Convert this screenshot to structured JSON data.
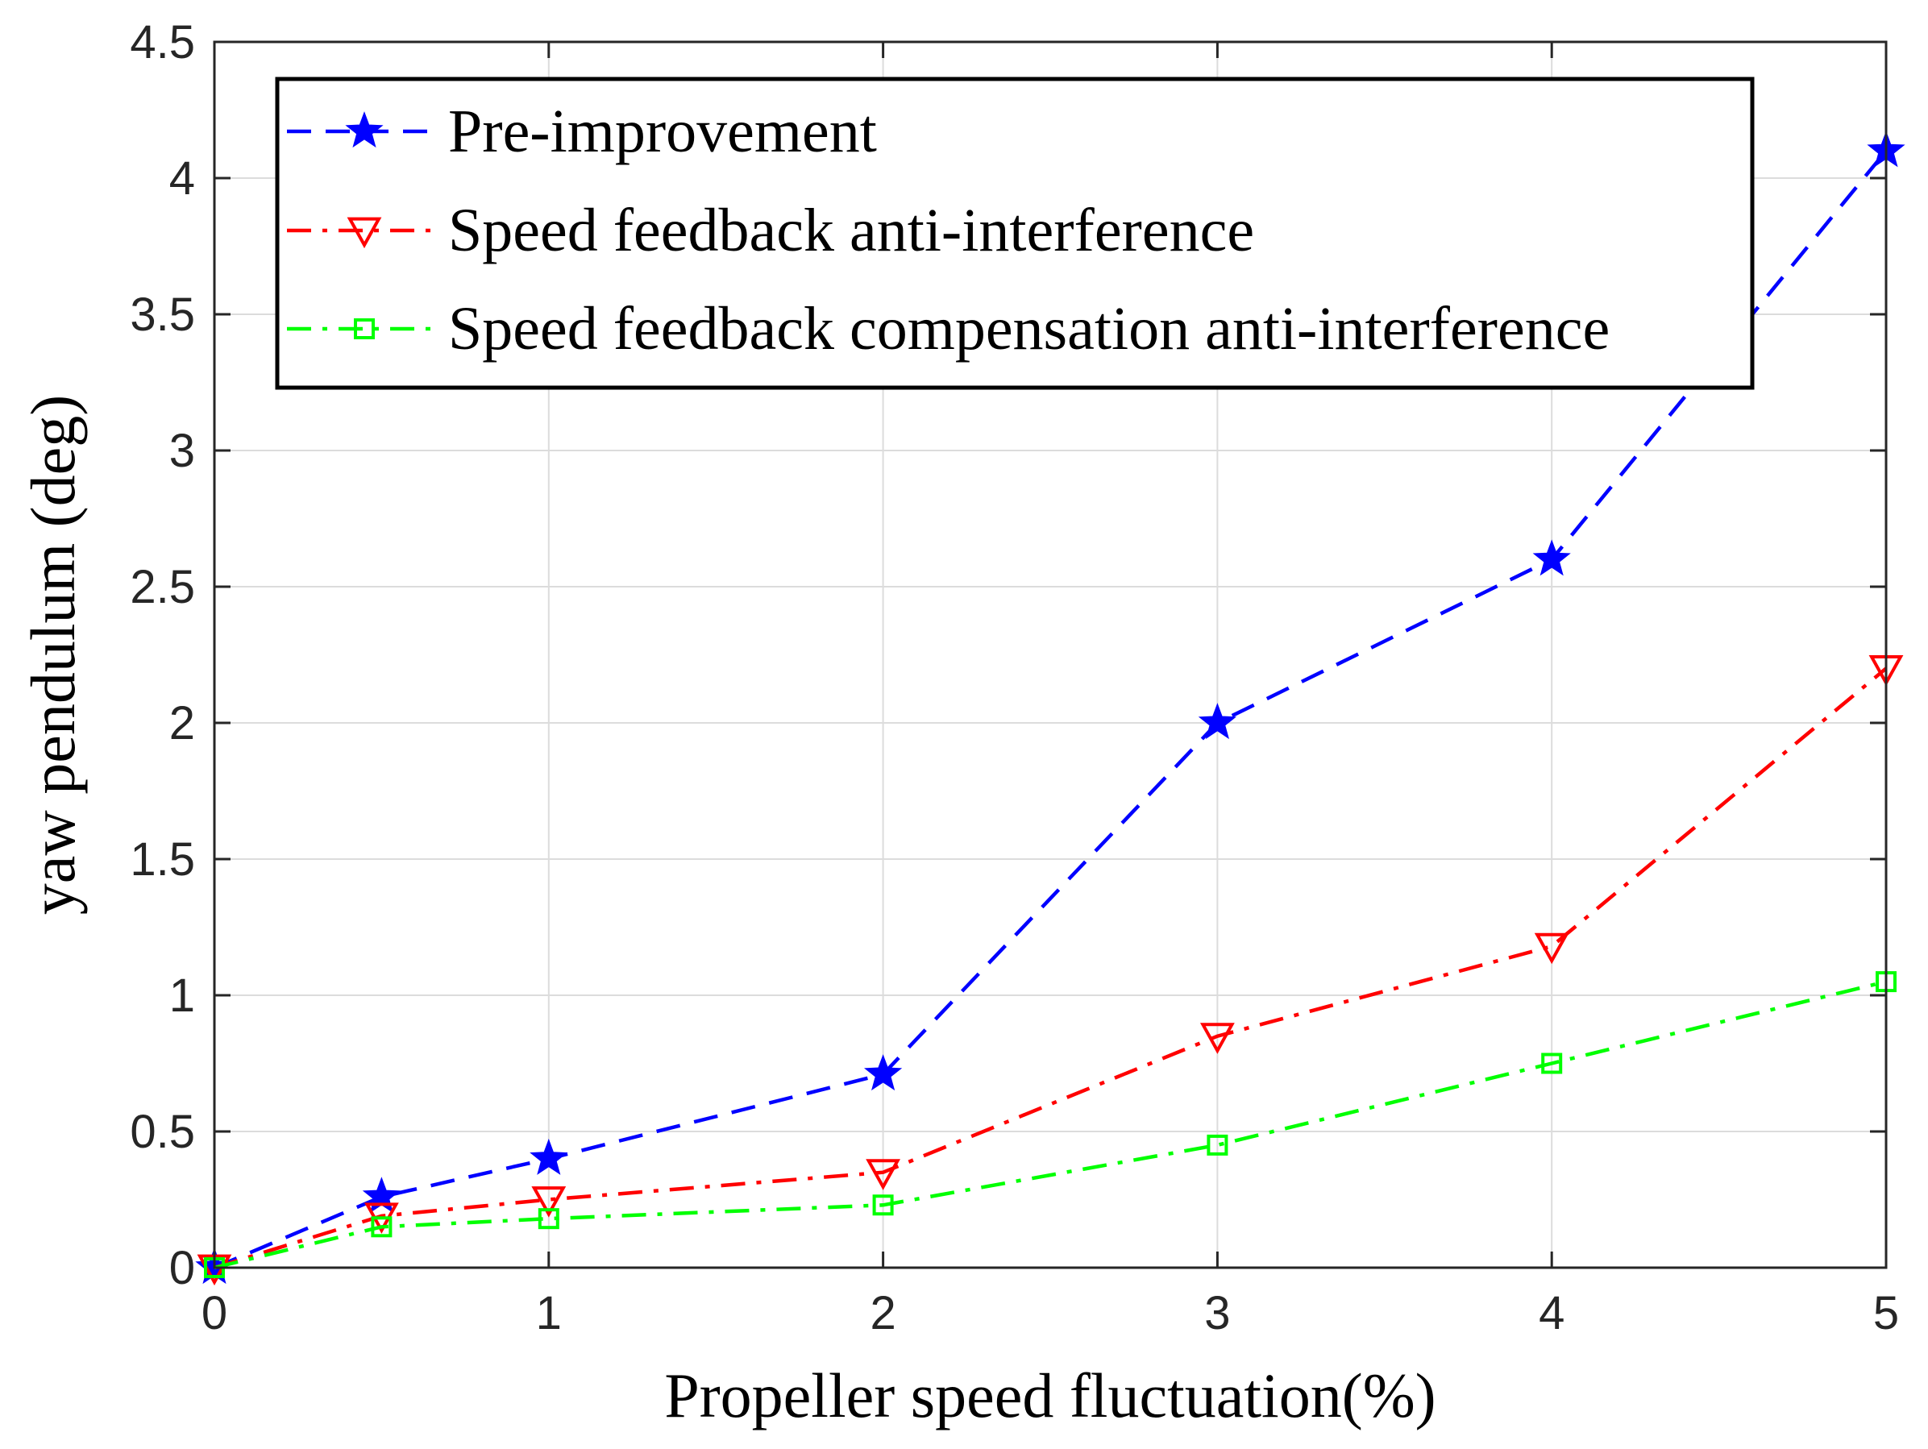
{
  "chart_data": {
    "type": "line",
    "title": "",
    "xlabel": "Propeller speed fluctuation(%)",
    "ylabel": "yaw pendulum (deg)",
    "xlim": [
      0,
      5
    ],
    "ylim": [
      0,
      4.5
    ],
    "xticks": [
      0,
      1,
      2,
      3,
      4,
      5
    ],
    "xtick_labels": [
      "0",
      "1",
      "2",
      "3",
      "4",
      "5"
    ],
    "yticks": [
      0,
      0.5,
      1,
      1.5,
      2,
      2.5,
      3,
      3.5,
      4,
      4.5
    ],
    "ytick_labels": [
      "0",
      "0.5",
      "1",
      "1.5",
      "2",
      "2.5",
      "3",
      "3.5",
      "4",
      "4.5"
    ],
    "grid": true,
    "legend_position": "top",
    "x": [
      0,
      0.5,
      1,
      2,
      3,
      4,
      5
    ],
    "series": [
      {
        "name": "Pre-improvement",
        "color": "#0000ff",
        "dash": "dashed",
        "marker": "star",
        "values": [
          0,
          0.26,
          0.4,
          0.71,
          2.0,
          2.6,
          4.1
        ]
      },
      {
        "name": "Speed feedback anti-interference",
        "color": "#ff0000",
        "dash": "dash-dot",
        "marker": "triangle-down",
        "values": [
          0,
          0.19,
          0.25,
          0.35,
          0.85,
          1.18,
          2.2
        ]
      },
      {
        "name": "Speed feedback compensation anti-interference",
        "color": "#00ff00",
        "dash": "dash-dot",
        "marker": "square",
        "values": [
          0,
          0.15,
          0.18,
          0.23,
          0.45,
          0.75,
          1.05
        ]
      }
    ]
  }
}
